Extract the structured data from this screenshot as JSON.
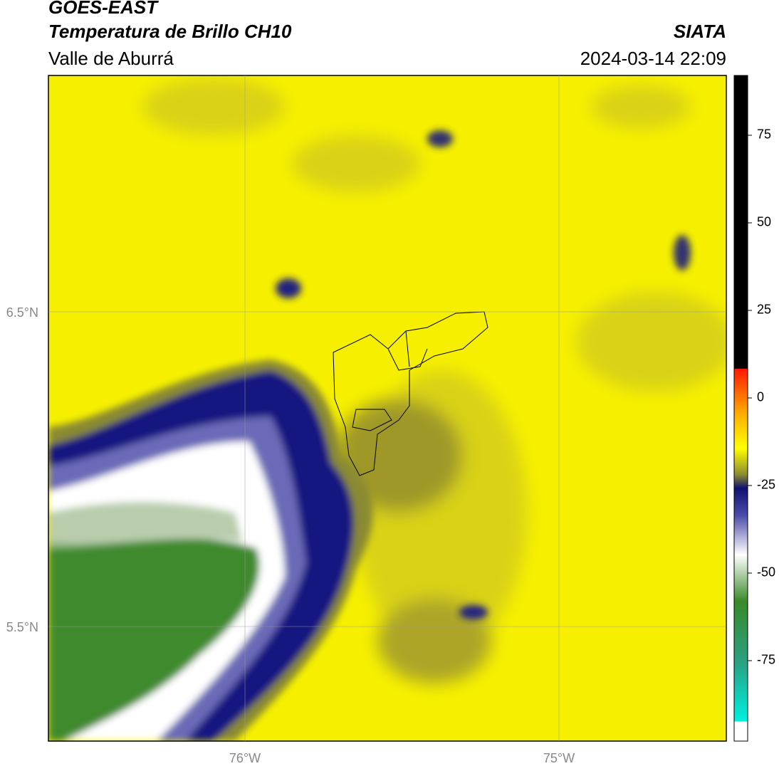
{
  "header": {
    "title": "GOES-EAST",
    "subtitle": "Temperatura de Brillo CH10",
    "source": "SIATA",
    "region": "Valle de Aburrá",
    "datetime": "2024-03-14 22:09"
  },
  "map": {
    "xlim": [
      -76.626,
      -74.467
    ],
    "ylim": [
      5.136,
      7.251
    ],
    "xticks": [
      {
        "value": -76,
        "label": "76°W"
      },
      {
        "value": -75,
        "label": "75°W"
      }
    ],
    "yticks": [
      {
        "value": 6.5,
        "label": "6.5°N"
      },
      {
        "value": 5.5,
        "label": "5.5°N"
      }
    ],
    "grid": true
  },
  "colorbar": {
    "lim": [
      -97.97,
      92.07
    ],
    "ticks": [
      75,
      50,
      25,
      0,
      -25,
      -50,
      -75
    ]
  }
}
